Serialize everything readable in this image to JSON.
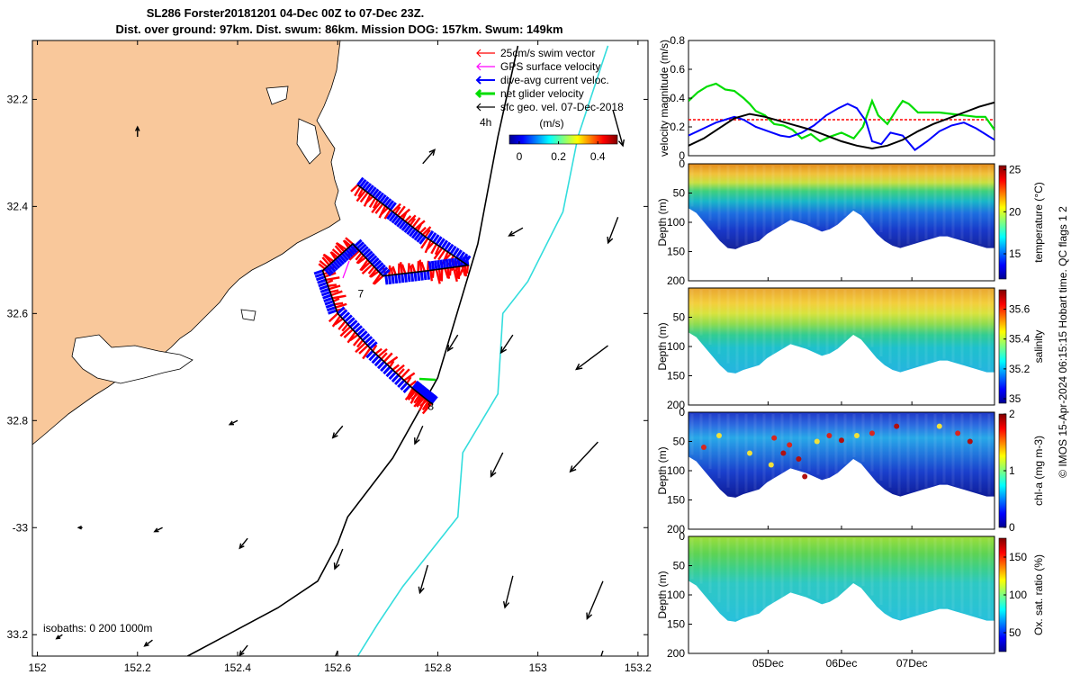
{
  "title": {
    "line1": "SL286 Forster20181201 04-Dec 00Z to 07-Dec 23Z.",
    "line2": "Dist. over ground: 97km. Dist. swum: 86km. Mission DOG: 157km. Swum: 149km"
  },
  "credit": "© IMOS 15-Apr-2024 06:15:15 Hobart time. QC flags 1  2",
  "colors": {
    "land": "#f9c89b",
    "swim": "#ff0000",
    "gps": "#ff00ff",
    "current": "#0000ff",
    "net": "#00dd00",
    "geo": "#000000",
    "isobath_200": "#000000",
    "isobath_1000": "#33dddd"
  },
  "chart_data": [
    {
      "type": "map",
      "xlim": [
        151.99,
        153.22
      ],
      "ylim": [
        -33.24,
        -32.09
      ],
      "xticks": [
        152,
        152.2,
        152.4,
        152.6,
        152.8,
        153,
        153.2
      ],
      "xtick_labels": [
        "152",
        "152.2",
        "152.4",
        "152.6",
        "152.8",
        "153",
        "153.2"
      ],
      "yticks": [
        -32.2,
        -32.4,
        -32.6,
        -32.8,
        -33,
        -33.2
      ],
      "ytick_labels": [
        "32.2",
        "32.4",
        "32.6",
        "32.8",
        "-33",
        "33.2"
      ],
      "legend": [
        {
          "label": "25cm/s swim vector",
          "color": "#ff0000"
        },
        {
          "label": "GPS surface velocity",
          "color": "#ff00ff"
        },
        {
          "label": "dive-avg current veloc.",
          "color": "#0000ff"
        },
        {
          "label": "net glider velocity",
          "color": "#00dd00"
        },
        {
          "label": "sfc geo. vel. 07-Dec-2018",
          "color": "#000000"
        }
      ],
      "legend_position": "top-right",
      "scale_label": "4h",
      "colorbar": {
        "label": "(m/s)",
        "ticks": [
          0,
          0.2,
          0.4
        ],
        "range": [
          -0.05,
          0.5
        ]
      },
      "isobath_label": "isobaths: 0   200  1000m",
      "day_markers": [
        {
          "label": "7",
          "lon": 152.64,
          "lat": -32.57
        },
        {
          "label": "8",
          "lon": 152.78,
          "lat": -32.78
        }
      ],
      "glider_track": [
        [
          152.64,
          -32.36
        ],
        [
          152.71,
          -32.41
        ],
        [
          152.78,
          -32.46
        ],
        [
          152.86,
          -32.51
        ],
        [
          152.78,
          -32.52
        ],
        [
          152.69,
          -32.53
        ],
        [
          152.63,
          -32.47
        ],
        [
          152.57,
          -32.52
        ],
        [
          152.6,
          -32.6
        ],
        [
          152.67,
          -32.67
        ],
        [
          152.75,
          -32.74
        ],
        [
          152.79,
          -32.77
        ]
      ],
      "isobath_200": [
        [
          152.96,
          -32.1
        ],
        [
          152.92,
          -32.27
        ],
        [
          152.88,
          -32.47
        ],
        [
          152.8,
          -32.72
        ],
        [
          152.71,
          -32.87
        ],
        [
          152.62,
          -32.98
        ],
        [
          152.6,
          -33.03
        ],
        [
          152.56,
          -33.1
        ],
        [
          152.48,
          -33.15
        ],
        [
          152.42,
          -33.18
        ],
        [
          152.36,
          -33.21
        ],
        [
          152.3,
          -33.24
        ]
      ],
      "isobath_1000": [
        [
          153.14,
          -32.1
        ],
        [
          153.08,
          -32.27
        ],
        [
          153.05,
          -32.41
        ],
        [
          152.98,
          -32.54
        ],
        [
          152.93,
          -32.6
        ],
        [
          152.92,
          -32.75
        ],
        [
          152.85,
          -32.86
        ],
        [
          152.84,
          -32.98
        ],
        [
          152.73,
          -33.11
        ],
        [
          152.68,
          -33.18
        ],
        [
          152.64,
          -33.24
        ]
      ],
      "current_vectors": [
        {
          "lon": 152.2,
          "lat": -32.27,
          "u": 0.0,
          "v": 0.05
        },
        {
          "lon": 152.77,
          "lat": -32.32,
          "u": 0.06,
          "v": 0.07
        },
        {
          "lon": 153.15,
          "lat": -32.22,
          "u": 0.05,
          "v": -0.18
        },
        {
          "lon": 152.97,
          "lat": -32.44,
          "u": -0.07,
          "v": -0.04
        },
        {
          "lon": 153.16,
          "lat": -32.42,
          "u": -0.05,
          "v": -0.13
        },
        {
          "lon": 152.84,
          "lat": -32.64,
          "u": -0.05,
          "v": -0.08
        },
        {
          "lon": 152.95,
          "lat": -32.64,
          "u": -0.06,
          "v": -0.09
        },
        {
          "lon": 153.14,
          "lat": -32.66,
          "u": -0.16,
          "v": -0.12
        },
        {
          "lon": 152.4,
          "lat": -32.8,
          "u": -0.04,
          "v": -0.02
        },
        {
          "lon": 152.61,
          "lat": -32.81,
          "u": -0.05,
          "v": -0.06
        },
        {
          "lon": 152.77,
          "lat": -32.81,
          "u": -0.04,
          "v": -0.09
        },
        {
          "lon": 152.93,
          "lat": -32.86,
          "u": -0.06,
          "v": -0.12
        },
        {
          "lon": 153.12,
          "lat": -32.84,
          "u": -0.14,
          "v": -0.15
        },
        {
          "lon": 152.09,
          "lat": -33.0,
          "u": -0.02,
          "v": 0.0
        },
        {
          "lon": 152.25,
          "lat": -33.0,
          "u": -0.04,
          "v": -0.02
        },
        {
          "lon": 152.42,
          "lat": -33.02,
          "u": -0.04,
          "v": -0.05
        },
        {
          "lon": 152.61,
          "lat": -33.04,
          "u": -0.04,
          "v": -0.1
        },
        {
          "lon": 152.78,
          "lat": -33.07,
          "u": -0.04,
          "v": -0.14
        },
        {
          "lon": 152.95,
          "lat": -33.09,
          "u": -0.04,
          "v": -0.16
        },
        {
          "lon": 153.13,
          "lat": -33.1,
          "u": -0.08,
          "v": -0.19
        },
        {
          "lon": 152.05,
          "lat": -33.2,
          "u": -0.03,
          "v": -0.02
        },
        {
          "lon": 152.23,
          "lat": -33.21,
          "u": -0.04,
          "v": -0.03
        },
        {
          "lon": 152.42,
          "lat": -33.22,
          "u": -0.04,
          "v": -0.05
        },
        {
          "lon": 152.6,
          "lat": -33.23,
          "u": -0.04,
          "v": -0.1
        },
        {
          "lon": 152.77,
          "lat": -33.24,
          "u": -0.04,
          "v": -0.12
        },
        {
          "lon": 152.95,
          "lat": -33.24,
          "u": -0.04,
          "v": -0.13
        },
        {
          "lon": 153.13,
          "lat": -33.23,
          "u": -0.05,
          "v": -0.15
        }
      ]
    },
    {
      "type": "line",
      "ylabel": "velocity magnitude (m/s)",
      "ylim": [
        0,
        0.8
      ],
      "yticks": [
        0,
        0.2,
        0.4,
        0.6,
        0.8
      ],
      "xlim": [
        0,
        1
      ],
      "series": [
        {
          "color": "#ff0000",
          "style": "dashed",
          "x": [
            0,
            1
          ],
          "y": [
            0.25,
            0.25
          ]
        },
        {
          "color": "#00dd00",
          "x": [
            0,
            0.03,
            0.06,
            0.09,
            0.12,
            0.15,
            0.18,
            0.2,
            0.22,
            0.25,
            0.28,
            0.31,
            0.34,
            0.37,
            0.4,
            0.43,
            0.46,
            0.5,
            0.54,
            0.57,
            0.6,
            0.62,
            0.65,
            0.68,
            0.7,
            0.72,
            0.75,
            0.78,
            0.82,
            0.86,
            0.9,
            0.94,
            0.97,
            1.0
          ],
          "y": [
            0.38,
            0.44,
            0.48,
            0.5,
            0.46,
            0.45,
            0.4,
            0.36,
            0.31,
            0.28,
            0.22,
            0.21,
            0.18,
            0.12,
            0.15,
            0.1,
            0.13,
            0.16,
            0.12,
            0.2,
            0.38,
            0.28,
            0.22,
            0.32,
            0.38,
            0.36,
            0.3,
            0.3,
            0.3,
            0.29,
            0.28,
            0.27,
            0.27,
            0.18
          ]
        },
        {
          "color": "#0000ff",
          "x": [
            0,
            0.03,
            0.06,
            0.09,
            0.12,
            0.15,
            0.18,
            0.22,
            0.26,
            0.3,
            0.33,
            0.37,
            0.41,
            0.45,
            0.49,
            0.52,
            0.55,
            0.58,
            0.6,
            0.63,
            0.66,
            0.7,
            0.74,
            0.78,
            0.82,
            0.86,
            0.9,
            0.94,
            0.97,
            1.0
          ],
          "y": [
            0.14,
            0.17,
            0.2,
            0.23,
            0.25,
            0.27,
            0.25,
            0.2,
            0.17,
            0.14,
            0.13,
            0.16,
            0.21,
            0.28,
            0.33,
            0.36,
            0.33,
            0.24,
            0.1,
            0.08,
            0.16,
            0.14,
            0.04,
            0.1,
            0.17,
            0.21,
            0.23,
            0.19,
            0.15,
            0.11
          ]
        },
        {
          "color": "#000000",
          "x": [
            0,
            0.05,
            0.1,
            0.15,
            0.2,
            0.25,
            0.3,
            0.35,
            0.4,
            0.45,
            0.5,
            0.55,
            0.6,
            0.65,
            0.7,
            0.75,
            0.8,
            0.85,
            0.9,
            0.95,
            1.0
          ],
          "y": [
            0.07,
            0.12,
            0.19,
            0.26,
            0.29,
            0.27,
            0.24,
            0.21,
            0.18,
            0.14,
            0.1,
            0.07,
            0.05,
            0.07,
            0.11,
            0.17,
            0.22,
            0.26,
            0.3,
            0.34,
            0.37
          ]
        }
      ]
    },
    {
      "type": "heatmap",
      "ylabel": "Depth (m)",
      "ylim": [
        200,
        0
      ],
      "yticks": [
        0,
        50,
        100,
        150,
        200
      ],
      "colorbar_label": "temperature (°C)",
      "colorbar_ticks": [
        "15",
        "20",
        "25"
      ],
      "colorbar_range": [
        12,
        25.5
      ],
      "colormap": "jet"
    },
    {
      "type": "heatmap",
      "ylabel": "Depth (m)",
      "ylim": [
        200,
        0
      ],
      "yticks": [
        50,
        100,
        150,
        200
      ],
      "colorbar_label": "salinity",
      "colorbar_ticks": [
        "35",
        "35.2",
        "35.4",
        "35.6"
      ],
      "colorbar_range": [
        34.97,
        35.73
      ],
      "colormap": "jet"
    },
    {
      "type": "heatmap",
      "ylabel": "Depth (m)",
      "ylim": [
        200,
        0
      ],
      "yticks": [
        0,
        50,
        100,
        150,
        200
      ],
      "colorbar_label": "chl-a (mg m-3)",
      "colorbar_ticks": [
        "0",
        "1",
        "2"
      ],
      "colorbar_range": [
        0,
        2
      ],
      "colormap": "jet"
    },
    {
      "type": "heatmap",
      "ylabel": "Depth (m)",
      "ylim": [
        200,
        0
      ],
      "yticks": [
        0,
        50,
        100,
        150,
        200
      ],
      "xticks": [
        "05Dec",
        "06Dec",
        "07Dec"
      ],
      "colorbar_label": "Ox. sat. ratio (%)",
      "colorbar_ticks": [
        "50",
        "100",
        "150"
      ],
      "colorbar_range": [
        25,
        175
      ],
      "colormap": "jet"
    }
  ]
}
